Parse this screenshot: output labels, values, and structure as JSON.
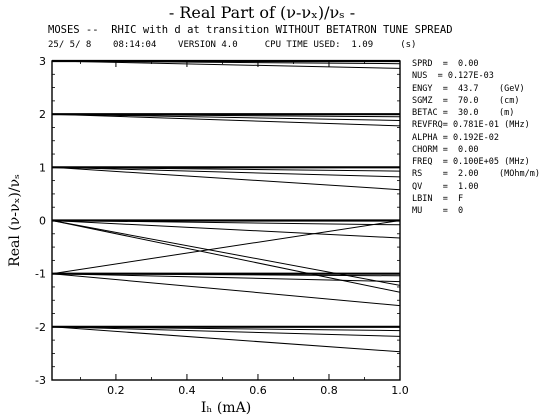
{
  "header": {
    "title": "- Real Part of (ν-νₓ)/νₛ -",
    "subtitle": "MOSES --  RHIC with d at transition WITHOUT BETATRON TUNE SPREAD",
    "info": "25/ 5/ 8    08:14:04    VERSION 4.0     CPU TIME USED:  1.09     (s)"
  },
  "params": [
    "SPRD  =  0.00",
    "NUS  = 0.127E-03",
    "ENGY  =  43.7    (GeV)",
    "SGMZ  =  70.0    (cm)",
    "BETAC =  30.0    (m)",
    "REVFRQ= 0.781E-01 (MHz)",
    "ALPHA = 0.192E-02",
    "CHORM =  0.00",
    "FREQ  = 0.100E+05 (MHz)",
    "RS    =  2.00    (MOhm/m)",
    "QV    =  1.00",
    "LBIN  =  F",
    "MU    =  0"
  ],
  "chart_data": {
    "type": "line",
    "title": "- Real Part of (ν-νₓ)/νₛ -",
    "xlabel": "Iₕ (mA)",
    "ylabel": "Real (ν-νₓ)/νₛ",
    "xlim": [
      0.02,
      1.0
    ],
    "ylim": [
      -3,
      3
    ],
    "xticks": [
      0.2,
      0.4,
      0.6,
      0.8,
      1.0
    ],
    "xtick_labels": [
      "0.2",
      "0.4",
      "0.6",
      "0.8",
      "1.0"
    ],
    "yticks": [
      -3,
      -2,
      -1,
      0,
      1,
      2,
      3
    ],
    "ytick_labels": [
      "-3",
      "-2",
      "-1",
      "0",
      "1",
      "2",
      "3"
    ],
    "grid": false,
    "series": [
      {
        "x": [
          0.02,
          1.0
        ],
        "y": [
          3.0,
          3.0
        ]
      },
      {
        "x": [
          0.02,
          1.0
        ],
        "y": [
          3.0,
          2.95
        ]
      },
      {
        "x": [
          0.02,
          1.0
        ],
        "y": [
          3.0,
          2.86
        ]
      },
      {
        "x": [
          0.02,
          1.0
        ],
        "y": [
          2.0,
          2.0
        ]
      },
      {
        "x": [
          0.02,
          1.0
        ],
        "y": [
          2.0,
          1.95
        ]
      },
      {
        "x": [
          0.02,
          1.0
        ],
        "y": [
          2.0,
          1.88
        ]
      },
      {
        "x": [
          0.02,
          1.0
        ],
        "y": [
          2.0,
          1.78
        ]
      },
      {
        "x": [
          0.02,
          1.0
        ],
        "y": [
          1.0,
          1.0
        ]
      },
      {
        "x": [
          0.02,
          1.0
        ],
        "y": [
          1.0,
          0.93
        ]
      },
      {
        "x": [
          0.02,
          1.0
        ],
        "y": [
          1.0,
          0.82
        ]
      },
      {
        "x": [
          0.02,
          1.0
        ],
        "y": [
          1.0,
          0.58
        ]
      },
      {
        "x": [
          0.02,
          1.0
        ],
        "y": [
          0.0,
          0.0
        ]
      },
      {
        "x": [
          0.02,
          1.0
        ],
        "y": [
          0.0,
          -0.08
        ]
      },
      {
        "x": [
          0.02,
          1.0
        ],
        "y": [
          0.0,
          -0.33
        ]
      },
      {
        "x": [
          0.02,
          1.0
        ],
        "y": [
          0.0,
          -1.22
        ]
      },
      {
        "x": [
          0.02,
          1.0
        ],
        "y": [
          0.0,
          -1.35
        ]
      },
      {
        "x": [
          0.02,
          1.0
        ],
        "y": [
          -1.0,
          -1.0
        ]
      },
      {
        "x": [
          0.02,
          1.0
        ],
        "y": [
          -1.0,
          -1.04
        ]
      },
      {
        "x": [
          0.02,
          1.0
        ],
        "y": [
          -1.0,
          -1.15
        ]
      },
      {
        "x": [
          0.02,
          1.0
        ],
        "y": [
          -1.0,
          -1.6
        ]
      },
      {
        "x": [
          0.02,
          1.0
        ],
        "y": [
          -1.0,
          0.0
        ]
      },
      {
        "x": [
          0.02,
          1.0
        ],
        "y": [
          -2.0,
          -2.0
        ]
      },
      {
        "x": [
          0.02,
          1.0
        ],
        "y": [
          -2.0,
          -2.07
        ]
      },
      {
        "x": [
          0.02,
          1.0
        ],
        "y": [
          -2.0,
          -2.18
        ]
      },
      {
        "x": [
          0.02,
          1.0
        ],
        "y": [
          -2.0,
          -2.47
        ]
      }
    ]
  }
}
